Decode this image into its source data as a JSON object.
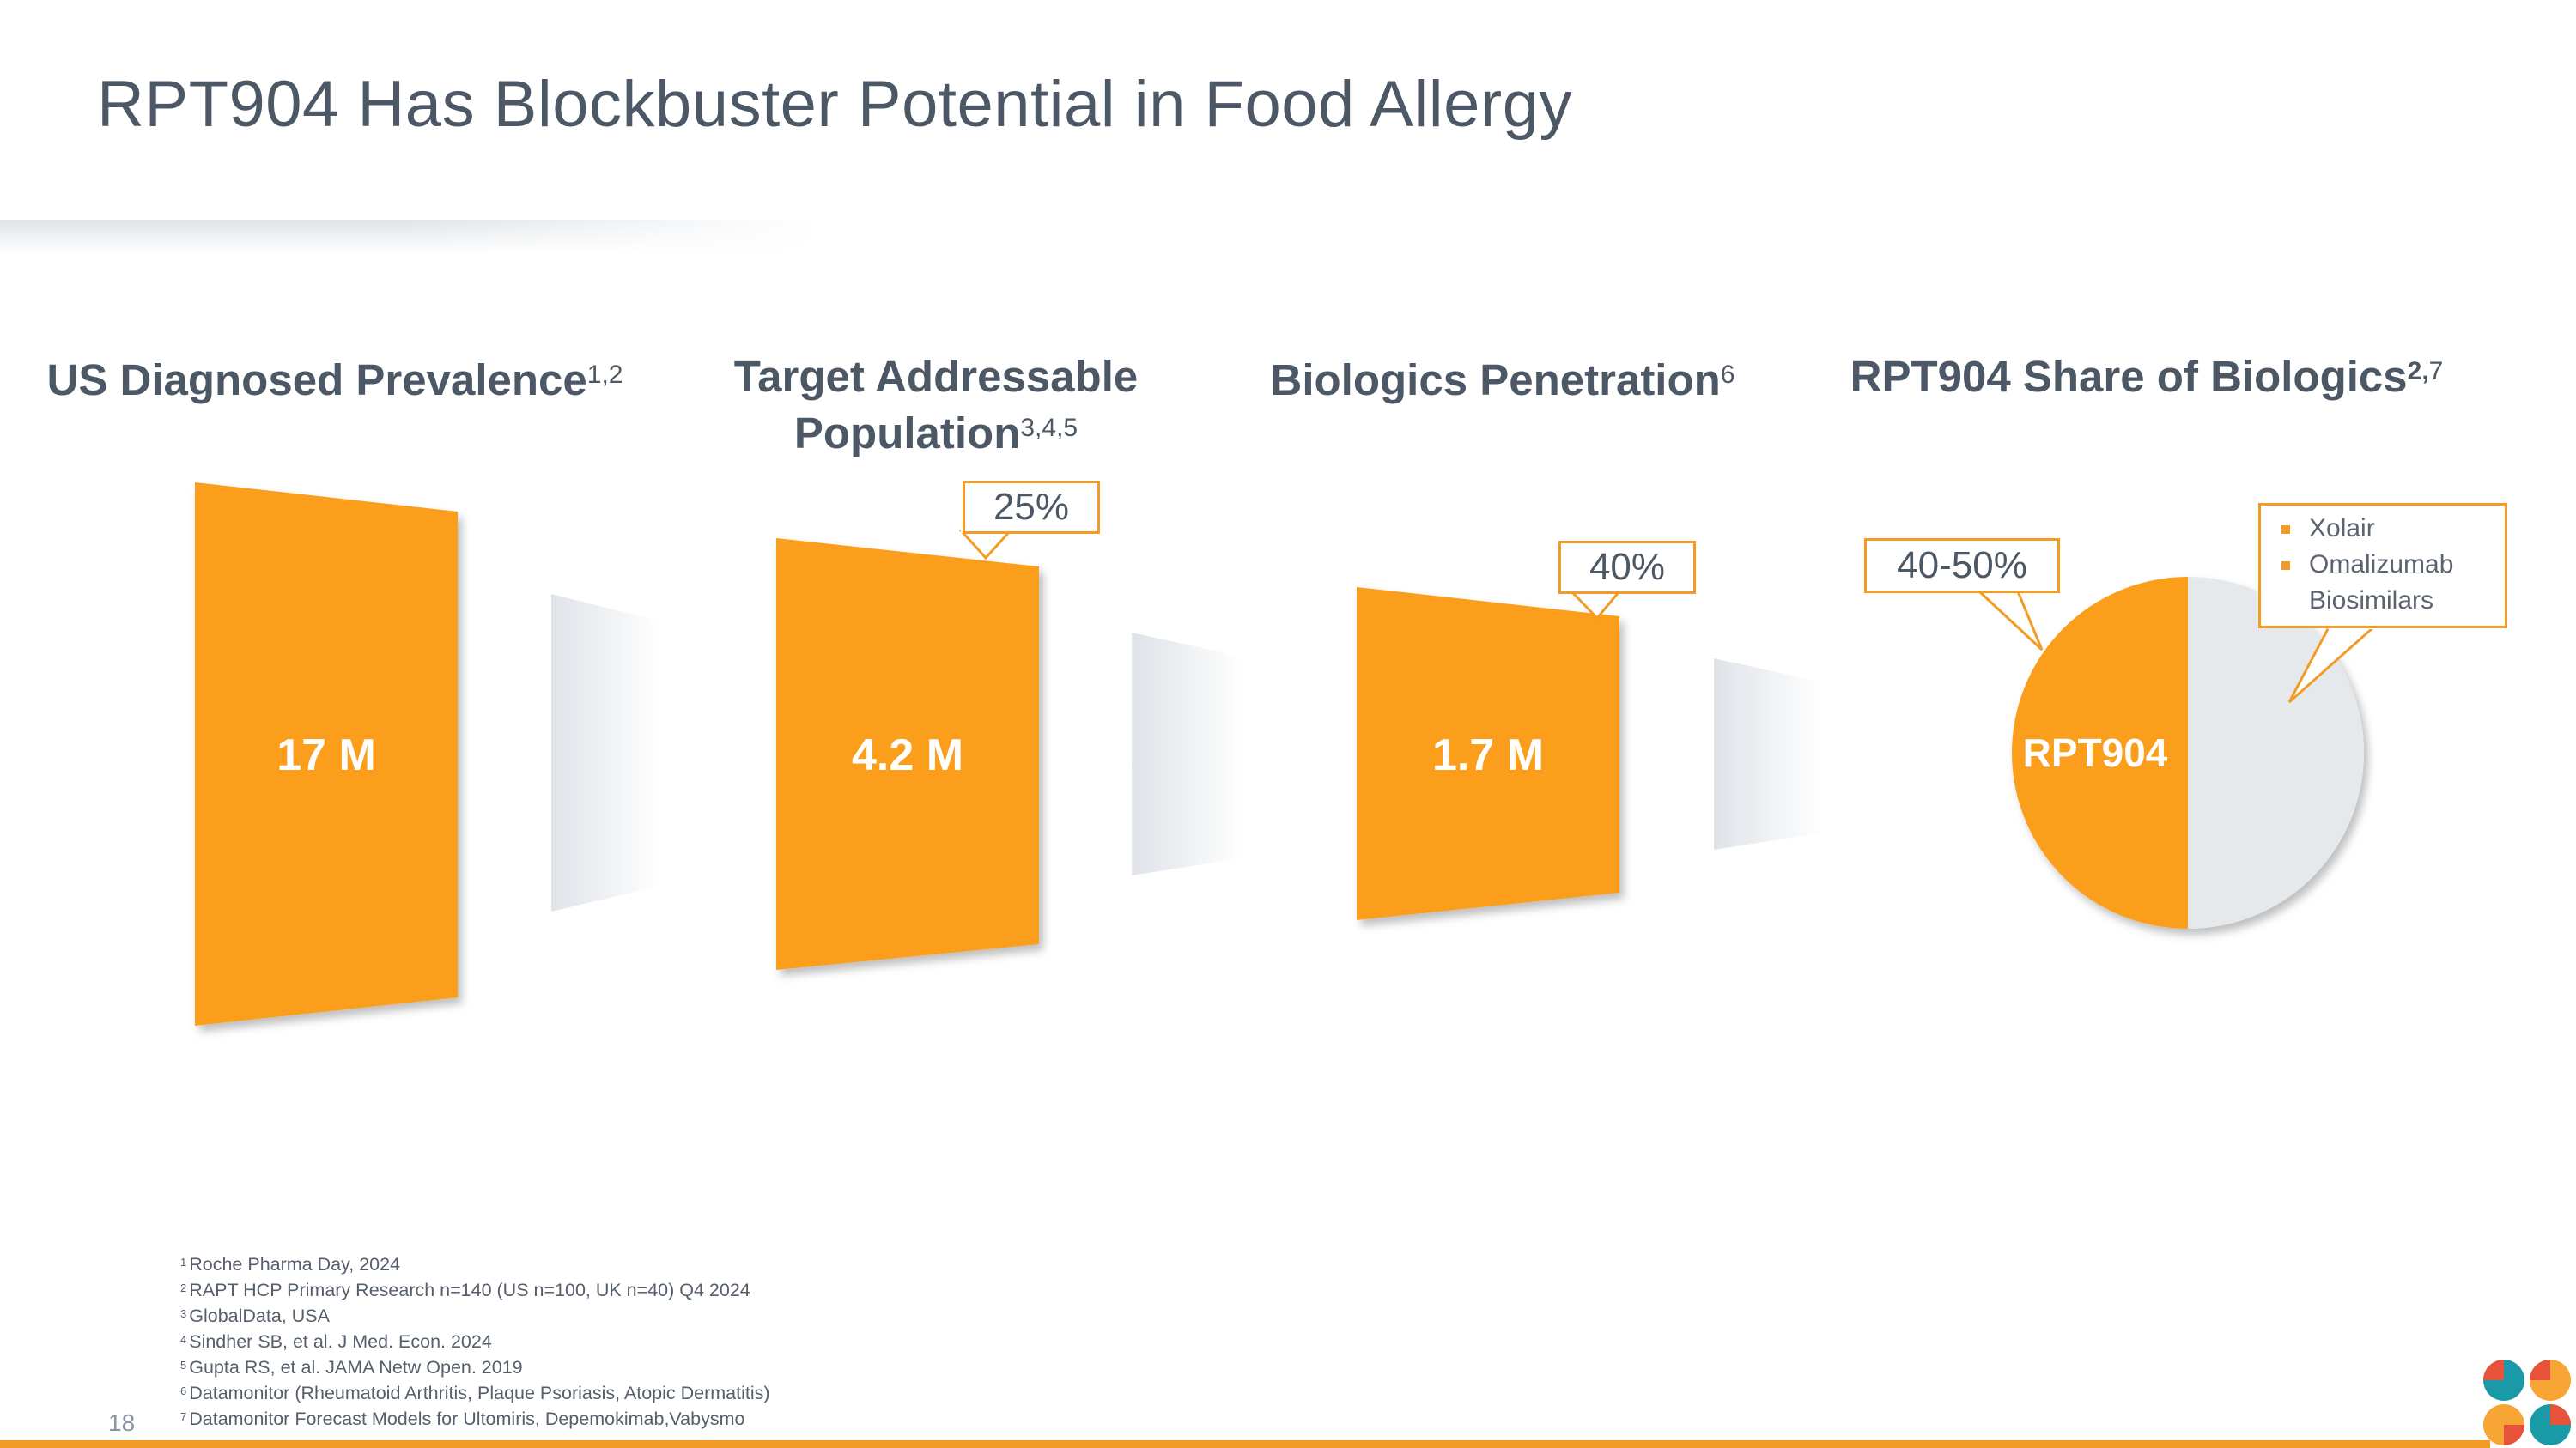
{
  "title": "RPT904 Has Blockbuster Potential in Food Allergy",
  "columns": [
    {
      "heading": "US Diagnosed Prevalence",
      "sup": "1,2",
      "value": "17 M"
    },
    {
      "heading_line1": "Target Addressable",
      "heading_line2": "Population",
      "sup": "3,4,5",
      "value": "4.2 M",
      "callout": "25%"
    },
    {
      "heading": "Biologics Penetration",
      "sup": "6",
      "value": "1.7 M",
      "callout": "40%"
    },
    {
      "heading": "RPT904 Share of Biologics",
      "sup_bold": "2,",
      "sup": "7",
      "callout": "40-50%",
      "pie_label": "RPT904"
    }
  ],
  "legend": {
    "items": [
      "Xolair",
      "Omalizumab",
      "Biosimilars"
    ]
  },
  "footnotes": [
    {
      "num": "1",
      "text": "Roche Pharma Day, 2024"
    },
    {
      "num": "2",
      "text": "RAPT HCP Primary Research n=140 (US n=100, UK n=40) Q4 2024"
    },
    {
      "num": "3",
      "text": "GlobalData, USA"
    },
    {
      "num": "4",
      "text": "Sindher SB, et al. J Med. Econ. 2024"
    },
    {
      "num": "5",
      "text": "Gupta RS, et al. JAMA Netw Open. 2019"
    },
    {
      "num": "6",
      "text": "Datamonitor (Rheumatoid Arthritis, Plaque Psoriasis, Atopic Dermatitis)"
    },
    {
      "num": "7",
      "text": "Datamonitor Forecast Models for Ultomiris, Depemokimab,Vabysmo"
    }
  ],
  "page_number": "18",
  "colors": {
    "orange": "#f29b25",
    "bar_orange": "#fb9e1c",
    "text_gray": "#4d5866",
    "pie_gray": "#e6e9ec"
  },
  "icons": [
    "connector-shape",
    "pie-chart",
    "company-logo"
  ]
}
